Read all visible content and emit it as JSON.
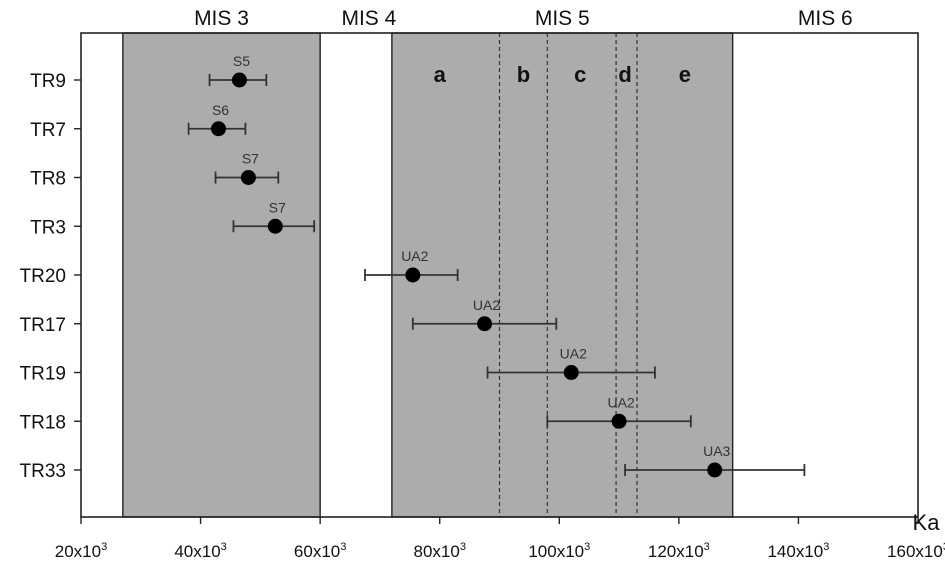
{
  "chart_data": {
    "type": "scatter",
    "x_unit_label": "Ka",
    "xlim": [
      20000,
      160000
    ],
    "x_ticks": [
      {
        "value": 20000,
        "base": "20x10",
        "exp": "3"
      },
      {
        "value": 40000,
        "base": "40x10",
        "exp": "3"
      },
      {
        "value": 60000,
        "base": "60x10",
        "exp": "3"
      },
      {
        "value": 80000,
        "base": "80x10",
        "exp": "3"
      },
      {
        "value": 100000,
        "base": "100x10",
        "exp": "3"
      },
      {
        "value": 120000,
        "base": "120x10",
        "exp": "3"
      },
      {
        "value": 140000,
        "base": "140x10",
        "exp": "3"
      },
      {
        "value": 160000,
        "base": "160x10",
        "exp": "3"
      }
    ],
    "categories": [
      "TR9",
      "TR7",
      "TR8",
      "TR3",
      "TR20",
      "TR17",
      "TR19",
      "TR18",
      "TR33"
    ],
    "points": [
      {
        "category": "TR9",
        "x": 46500,
        "x_low": 41500,
        "x_high": 51000,
        "label": "S5"
      },
      {
        "category": "TR7",
        "x": 43000,
        "x_low": 38000,
        "x_high": 47500,
        "label": "S6"
      },
      {
        "category": "TR8",
        "x": 48000,
        "x_low": 42500,
        "x_high": 53000,
        "label": "S7"
      },
      {
        "category": "TR3",
        "x": 52500,
        "x_low": 45500,
        "x_high": 59000,
        "label": "S7"
      },
      {
        "category": "TR20",
        "x": 75500,
        "x_low": 67500,
        "x_high": 83000,
        "label": "UA2"
      },
      {
        "category": "TR17",
        "x": 87500,
        "x_low": 75500,
        "x_high": 99500,
        "label": "UA2"
      },
      {
        "category": "TR19",
        "x": 102000,
        "x_low": 88000,
        "x_high": 116000,
        "label": "UA2"
      },
      {
        "category": "TR18",
        "x": 110000,
        "x_low": 98000,
        "x_high": 122000,
        "label": "UA2"
      },
      {
        "category": "TR33",
        "x": 126000,
        "x_low": 111000,
        "x_high": 141000,
        "label": "UA3"
      }
    ],
    "bands": [
      {
        "label": "MIS 3",
        "from": 27000,
        "to": 60000,
        "shaded": true
      },
      {
        "label": "MIS 4",
        "from": 60000,
        "to": 72000,
        "shaded": false
      },
      {
        "label": "MIS 5",
        "from": 72000,
        "to": 129000,
        "shaded": true
      },
      {
        "label": "MIS 6",
        "from": 129000,
        "to": 160000,
        "shaded": false
      }
    ],
    "substages": [
      {
        "label": "a",
        "x": 80000
      },
      {
        "label": "b",
        "x": 94000
      },
      {
        "label": "c",
        "x": 103500
      },
      {
        "label": "d",
        "x": 111000
      },
      {
        "label": "e",
        "x": 121000
      }
    ],
    "substage_boundaries": [
      90000,
      98000,
      109500,
      113000
    ],
    "colors": {
      "band_fill": "#acacac",
      "marker": "#000000",
      "errorbar": "#333333",
      "axis": "#222222"
    }
  }
}
